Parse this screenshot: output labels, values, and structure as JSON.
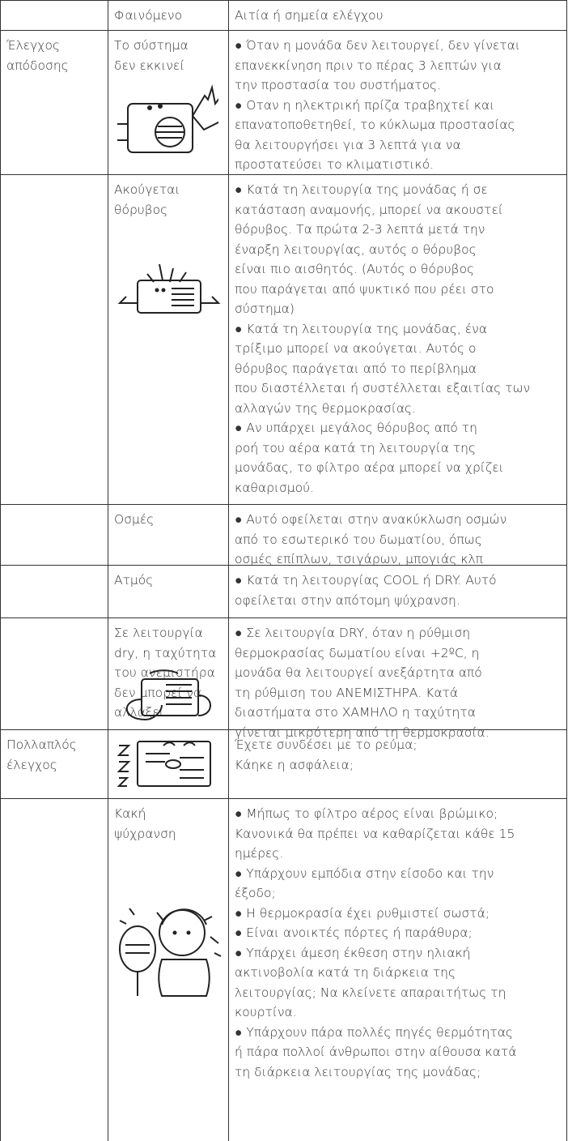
{
  "header": {
    "phenomenon": "Φαινόμενο",
    "cause": "Αιτία ή σημεία ελέγχου"
  },
  "rows": [
    {
      "category": [
        "Έλεγχος",
        "απόδοσης"
      ],
      "phenomenon": [
        "Το σύστημα",
        "δεν εκκινεί"
      ],
      "cause": [
        "● Όταν η μονάδα δεν λειτουργεί, δεν γίνεται",
        "επανεκκίνηση πριν το πέρας 3 λεπτών για",
        "την προστασία του συστήματος.",
        "● Οταν η ηλεκτρική πρίζα τραβηχτεί και",
        "επανατοποθετηθεί, το κύκλωμα προστασίας",
        "θα λειτουργήσει για 3 λεπτά για να",
        "προστατεύσει το κλιματιστικό."
      ]
    },
    {
      "phenomenon": [
        "Ακούγεται",
        "θόρυβος"
      ],
      "cause": [
        "● Κατά τη λειτουργία της μονάδας ή σε",
        "κατάσταση αναμονής, μπορεί να ακουστεί",
        "θόρυβος. Τα πρώτα 2-3 λεπτά μετά την",
        "έναρξη λειτουργίας, αυτός ο θόρυβος",
        "είναι πιο αισθητός. (Αυτός ο θόρυβος",
        "που παράγεται από ψυκτικό που ρέει στο",
        "σύστημα)",
        "● Κατά τη λειτουργία της μονάδας, ένα",
        "τρίξιμο μπορεί να ακούγεται. Αυτός ο",
        "θόρυβος παράγεται από το περίβλημα",
        "που διαστέλλεται ή συστέλλεται εξαιτίας των",
        "αλλαγών της θερμοκρασίας.",
        "● Αν υπάρχει μεγάλος θόρυβος από τη",
        "ροή του αέρα κατά τη λειτουργία της",
        "μονάδας, το φίλτρο αέρα μπορεί να χρίζει",
        "καθαρισμού."
      ]
    },
    {
      "phenomenon": [
        "Οσμές"
      ],
      "cause": [
        "● Αυτό οφείλεται στην ανακύκλωση οσμών",
        "από το εσωτερικό του δωματίου, όπως",
        "οσμές επίπλων, τσιγάρων, μπογιάς κλπ"
      ]
    },
    {
      "phenomenon": [
        "Ατμός"
      ],
      "cause": [
        "● Κατά τη λειτουργίας COOL ή DRY. Αυτό",
        "οφείλεται στην απότομη ψύχρανση."
      ]
    },
    {
      "phenomenon": [
        "Σε λειτουργία",
        "dry, η ταχύτητα",
        "του ανεμιστήρα",
        "δεν μπορεί να",
        "αλλάξει."
      ],
      "cause": [
        "● Σε λειτουργία DRY, όταν η ρύθμιση",
        "θερμοκρασίας δωματίου είναι +2ºC, η",
        "μονάδα θα λειτουργεί ανεξάρτητα από",
        "τη ρύθμιση του ΑΝΕΜΙΣΤΗΡΑ. Κατά",
        "διαστήματα στο ΧΑΜΗΛΟ η ταχύτητα",
        "γίνεται μικρότερη από τη θερμοκρασία."
      ]
    },
    {
      "category": [
        "Πολλαπλός",
        "έλεγχος"
      ],
      "cause": [
        "Έχετε συνδέσει με το ρεύμα;",
        "Κάηκε η ασφάλεια;"
      ]
    },
    {
      "phenomenon": [
        "Κακή",
        "ψύχρανση"
      ],
      "cause": [
        "● Μήπως το φίλτρο αέρος είναι βρώμικο;",
        "Κανονικά θα πρέπει να καθαρίζεται κάθε 15",
        "ημέρες.",
        "● Υπάρχουν εμπόδια στην είσοδο και την",
        "έξοδο;",
        "● Η θερμοκρασία έχει ρυθμιστεί σωστά;",
        "● Είναι ανοικτές πόρτες ή παράθυρα;",
        "● Υπάρχει άμεση έκθεση στην ηλιακή",
        "ακτινοβολία κατά τη διάρκεια της",
        "λειτουργίας; Να κλείνετε απαραιτήτως τη",
        "κουρτίνα.",
        "● Υπάρχουν πάρα πολλές πηγές θερμότητας",
        "ή πάρα πολλοί άνθρωποι στην αίθουσα κατά",
        "τη διάρκεια λειτουργίας της μονάδας;"
      ]
    }
  ]
}
